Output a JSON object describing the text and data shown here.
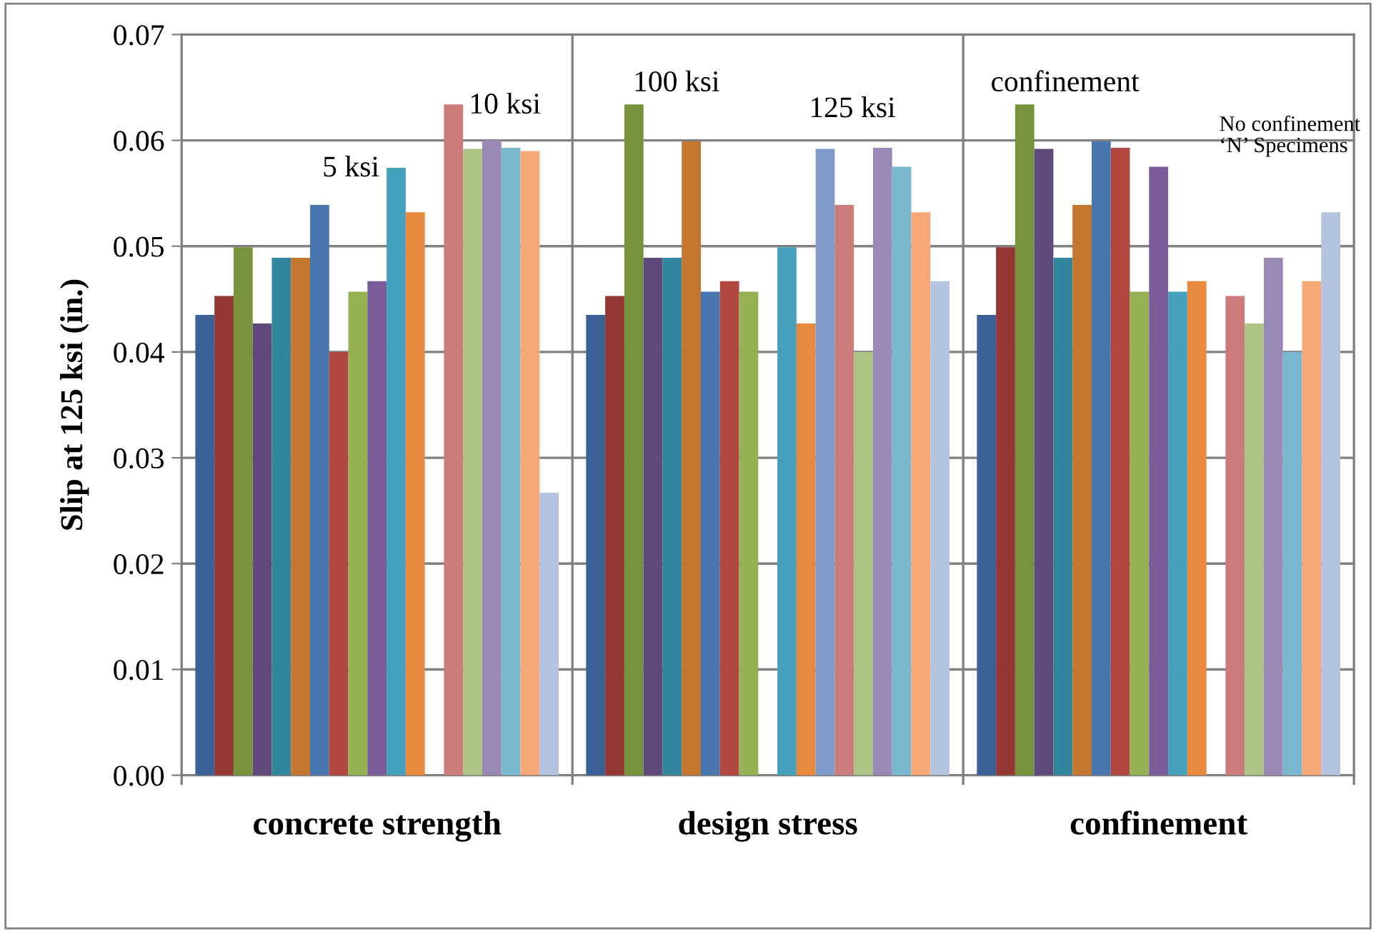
{
  "chart_data": {
    "type": "bar",
    "ylabel": "Slip at 125 ksi (in.)",
    "categories": [
      "concrete strength",
      "design stress",
      "confinement"
    ],
    "series": [
      {
        "color": "#3b6196",
        "values": [
          0.0435,
          0.0435,
          0.0435
        ]
      },
      {
        "color": "#953735",
        "values": [
          0.0453,
          0.0453,
          0.0499
        ]
      },
      {
        "color": "#77933c",
        "values": [
          0.0499,
          0.0634,
          0.0634
        ]
      },
      {
        "color": "#604a7b",
        "values": [
          0.0427,
          0.0489,
          0.0592
        ]
      },
      {
        "color": "#31859c",
        "values": [
          0.0489,
          0.0489,
          0.0489
        ]
      },
      {
        "color": "#c47530",
        "values": [
          0.0489,
          0.0599,
          0.0539
        ]
      },
      {
        "color": "#4a76b0",
        "values": [
          0.0539,
          0.0457,
          0.0599
        ]
      },
      {
        "color": "#b2473f",
        "values": [
          0.04,
          0.0467,
          0.0593
        ]
      },
      {
        "color": "#94b254",
        "values": [
          0.0457,
          0.0457,
          0.0457
        ]
      },
      {
        "color": "#7a5c98",
        "values": [
          0.0467,
          null,
          0.0575
        ]
      },
      {
        "color": "#45a1bb",
        "values": [
          0.0574,
          0.0499,
          0.0457
        ]
      },
      {
        "color": "#e8893e",
        "values": [
          0.0532,
          0.0427,
          0.0467
        ]
      },
      {
        "color": "#7f9ac7",
        "values": [
          null,
          0.0592,
          null
        ]
      },
      {
        "color": "#cb7b7a",
        "values": [
          0.0634,
          0.0539,
          0.0453
        ]
      },
      {
        "color": "#adc584",
        "values": [
          0.0592,
          0.04,
          0.0427
        ]
      },
      {
        "color": "#9b89b5",
        "values": [
          0.06,
          0.0593,
          0.0489
        ]
      },
      {
        "color": "#79b8cf",
        "values": [
          0.0593,
          0.0575,
          0.04
        ]
      },
      {
        "color": "#f6a976",
        "values": [
          0.059,
          0.0532,
          0.0467
        ]
      },
      {
        "color": "#b4c4df",
        "values": [
          0.0267,
          0.0467,
          0.0532
        ]
      }
    ],
    "ylim": [
      0,
      0.07
    ],
    "yticks": [
      {
        "value": 0,
        "label": "0.00"
      },
      0.01,
      0.02,
      0.03,
      0.04,
      0.05,
      0.06,
      0.07
    ],
    "grid": true,
    "legend": false,
    "annotations": [
      "5 ksi",
      "10 ksi",
      "100 ksi",
      "125 ksi",
      "confinement",
      "No confinement\n‘N’ Specimens"
    ]
  }
}
